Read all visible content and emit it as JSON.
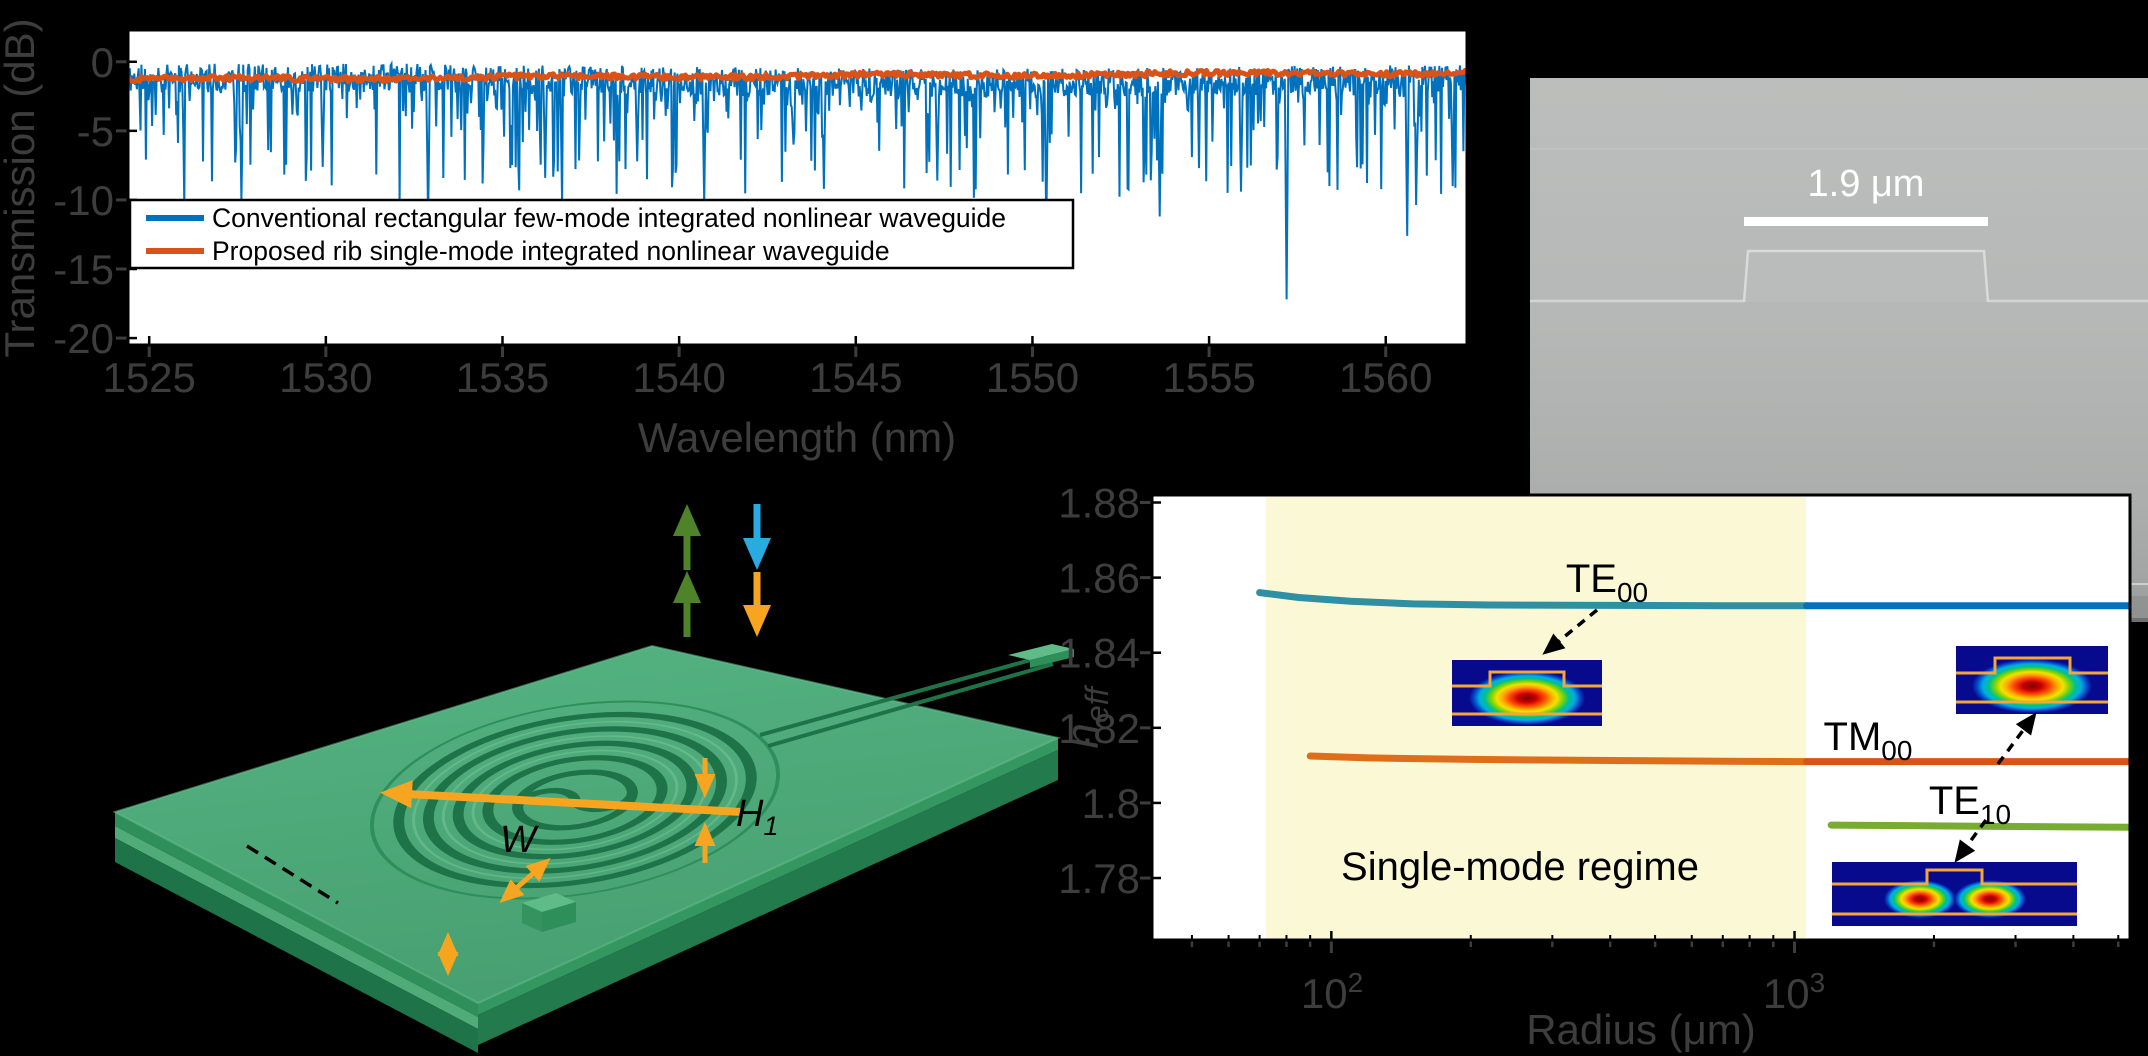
{
  "figure": {
    "background": "#000000"
  },
  "colors": {
    "matlab_blue": "#0072BD",
    "matlab_orange": "#D95319",
    "matlab_green": "#77AC30",
    "te00_in_region": "#2F8FA3",
    "tm00_in_region": "#DF6E1A",
    "region_yellow": "#FBF8D5",
    "axis_text": "#3D3D3D",
    "annotation_orange": "#F7A520",
    "annotation_green": "#4E8329",
    "annotation_blue": "#29ABE2",
    "chip_green": "#4FAD7B"
  },
  "chart_data": [
    {
      "type": "line",
      "title": "",
      "xlabel": "Wavelength (nm)",
      "ylabel": "Transmission (dB)",
      "xlim": [
        1524.4,
        1562.3
      ],
      "ylim": [
        -20.5,
        2.3
      ],
      "xticks": [
        1525,
        1530,
        1535,
        1540,
        1545,
        1550,
        1555,
        1560
      ],
      "yticks": [
        0,
        -5,
        -10,
        -15,
        -20
      ],
      "grid": false,
      "legend_position": "lower left",
      "legend": [
        {
          "label": "Conventional rectangular few-mode integrated nonlinear waveguide",
          "color": "#0072BD"
        },
        {
          "label": "Proposed rib single-mode integrated nonlinear waveguide",
          "color": "#D95319"
        }
      ],
      "series": [
        {
          "name": "Conventional rectangular few-mode integrated nonlinear waveguide",
          "color": "#0072BD",
          "line_width": 2,
          "synth": {
            "points_n": 1500,
            "seed": 11,
            "baseline_db": -1.35,
            "noise_db": 1.05,
            "dip_probability": 0.35,
            "dip_depth_max": 8.5,
            "dip_power": 3.2
          },
          "deep_dips": [
            [
              1527.6,
              -10.1
            ],
            [
              1529.9,
              -7.6
            ],
            [
              1532.9,
              -11.6
            ],
            [
              1536.2,
              -8.4
            ],
            [
              1538.8,
              -7.2
            ],
            [
              1540.7,
              -10.3
            ],
            [
              1544.1,
              -9.2
            ],
            [
              1547.3,
              -8.6
            ],
            [
              1550.4,
              -12.1
            ],
            [
              1553.6,
              -11.2
            ],
            [
              1555.9,
              -9.4
            ],
            [
              1557.2,
              -17.2
            ],
            [
              1560.6,
              -12.6
            ],
            [
              1561.9,
              -9.0
            ]
          ]
        },
        {
          "name": "Proposed rib single-mode integrated nonlinear waveguide",
          "color": "#D95319",
          "line_width": 5,
          "synth": {
            "points_n": 700,
            "seed": 4,
            "baseline_db": -1.28,
            "slope_db": 0.5,
            "noise_db": 0.2
          }
        }
      ]
    },
    {
      "type": "line",
      "xlabel": "Radius (μm)",
      "ylabel_main": "n",
      "ylabel_sub": "eff",
      "xscale": "log",
      "xlim": [
        41,
        5300
      ],
      "ylim": [
        1.7635,
        1.882
      ],
      "xticks": [
        {
          "base": "10",
          "exp": "2",
          "value": 100
        },
        {
          "base": "10",
          "exp": "3",
          "value": 1000
        }
      ],
      "minor_xticks": [
        50,
        60,
        70,
        80,
        90,
        200,
        300,
        400,
        500,
        600,
        700,
        800,
        900,
        2000,
        3000,
        4000,
        5000
      ],
      "yticks": [
        1.88,
        1.86,
        1.84,
        1.82,
        1.8,
        1.78
      ],
      "shaded_region": {
        "x0": 72,
        "x1": 1062,
        "color": "#FBF8D5",
        "label": "Single-mode regime"
      },
      "series": [
        {
          "name": "TE00",
          "label_main": "TE",
          "label_sub": "00",
          "color": "#0072BD",
          "color_in_region": "#2F8FA3",
          "line_width": 7,
          "points": [
            [
              70,
              1.856
            ],
            [
              85,
              1.8547
            ],
            [
              110,
              1.8537
            ],
            [
              150,
              1.853
            ],
            [
              220,
              1.8527
            ],
            [
              400,
              1.8526
            ],
            [
              700,
              1.8525
            ],
            [
              1062,
              1.8525
            ],
            [
              2000,
              1.8525
            ],
            [
              5300,
              1.8525
            ]
          ]
        },
        {
          "name": "TM00",
          "label_main": "TM",
          "label_sub": "00",
          "color": "#D95319",
          "color_in_region": "#DF6E1A",
          "line_width": 7,
          "points": [
            [
              90,
              1.8125
            ],
            [
              120,
              1.812
            ],
            [
              200,
              1.8116
            ],
            [
              400,
              1.8113
            ],
            [
              700,
              1.8111
            ],
            [
              1062,
              1.811
            ],
            [
              2000,
              1.811
            ],
            [
              5300,
              1.811
            ]
          ]
        },
        {
          "name": "TE10",
          "label_main": "TE",
          "label_sub": "10",
          "color": "#77AC30",
          "color_in_region": "#77AC30",
          "line_width": 7,
          "points": [
            [
              950,
              1.7945
            ],
            [
              1200,
              1.7941
            ],
            [
              2500,
              1.7938
            ],
            [
              5300,
              1.7935
            ]
          ]
        }
      ]
    }
  ],
  "panel_b": {
    "scale_label": "1.9 μm"
  },
  "panel_c": {
    "width_label": "W",
    "h1_main": "H",
    "h1_sub": "1"
  }
}
